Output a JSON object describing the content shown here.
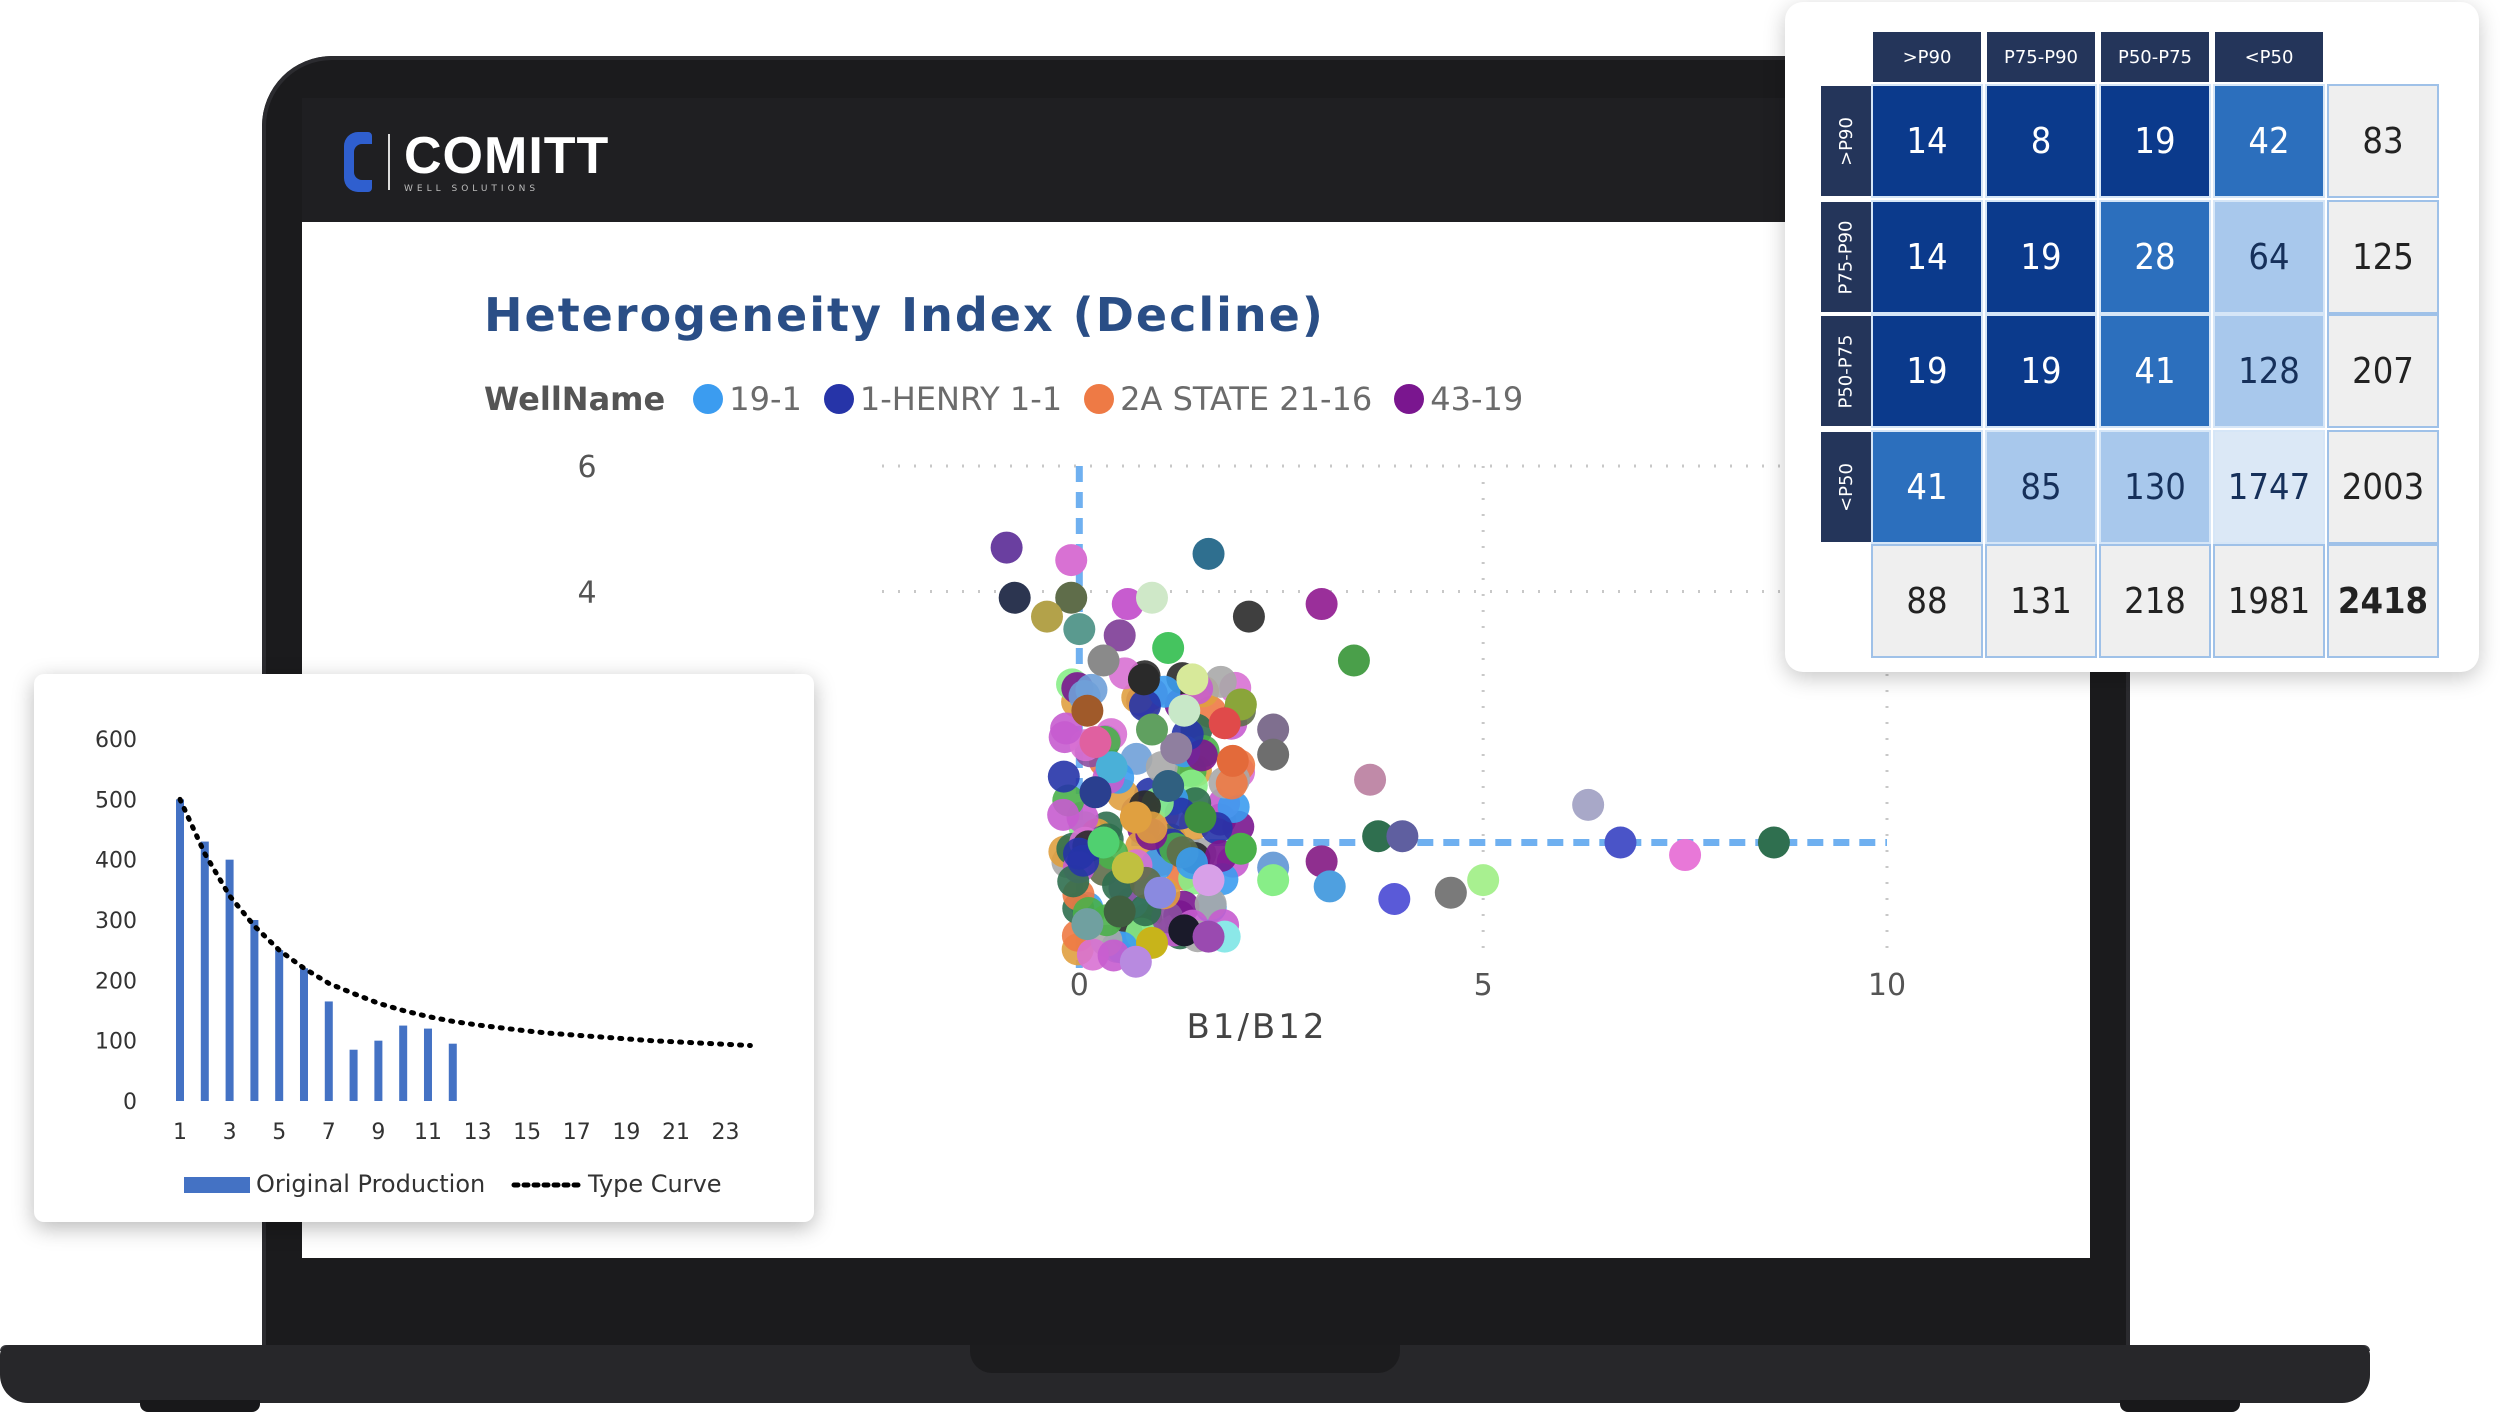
{
  "app": {
    "logo_text": "COMITT",
    "logo_sub": "WELL SOLUTIONS"
  },
  "scatter": {
    "title": "Heterogeneity Index (Decline)",
    "legend_label": "WellName",
    "legend_items": [
      {
        "name": "19-1",
        "color": "#3b9cf0"
      },
      {
        "name": "1-HENRY 1-1",
        "color": "#2634a8"
      },
      {
        "name": "2A STATE 21-16",
        "color": "#ee7a45"
      },
      {
        "name": "43-19",
        "color": "#7a168f"
      }
    ],
    "y_ticks": [
      "6",
      "4"
    ],
    "x_ticks": [
      "0",
      "5",
      "10"
    ],
    "x_label": "B1/B12"
  },
  "chart_data": [
    {
      "type": "scatter",
      "title": "Heterogeneity Index (Decline)",
      "legend_title": "WellName",
      "xlabel": "B1/B12",
      "ylabel": "",
      "xlim": [
        -3,
        10
      ],
      "ylim": [
        -2,
        6
      ],
      "series_names": [
        "19-1",
        "1-HENRY 1-1",
        "2A STATE 21-16",
        "43-19"
      ],
      "reference_lines": {
        "x": 0,
        "y": 0
      },
      "points": [
        {
          "x": -0.9,
          "y": 4.7,
          "color": "#6a3fa0"
        },
        {
          "x": -0.1,
          "y": 4.5,
          "color": "#d871d3"
        },
        {
          "x": 1.6,
          "y": 4.6,
          "color": "#2f6f8f"
        },
        {
          "x": -0.8,
          "y": 3.9,
          "color": "#2c3550"
        },
        {
          "x": -0.1,
          "y": 3.9,
          "color": "#5f6d4a"
        },
        {
          "x": 0.6,
          "y": 3.8,
          "color": "#c75ccf"
        },
        {
          "x": 0.9,
          "y": 3.9,
          "color": "#cfe8c8"
        },
        {
          "x": 3.0,
          "y": 3.8,
          "color": "#9a2f9a"
        },
        {
          "x": 2.1,
          "y": 3.6,
          "color": "#3f3f3f"
        },
        {
          "x": -0.4,
          "y": 3.6,
          "color": "#b3a24a"
        },
        {
          "x": 0.0,
          "y": 3.4,
          "color": "#5a9a8f"
        },
        {
          "x": 0.5,
          "y": 3.3,
          "color": "#8a4fa0"
        },
        {
          "x": 1.1,
          "y": 3.1,
          "color": "#45c45f"
        },
        {
          "x": 3.4,
          "y": 2.9,
          "color": "#4a9f4a"
        },
        {
          "x": 0.3,
          "y": 2.9,
          "color": "#8a8a8a"
        },
        {
          "x": 0.8,
          "y": 2.6,
          "color": "#2a2a2a"
        },
        {
          "x": 1.4,
          "y": 2.6,
          "color": "#d7e99a"
        },
        {
          "x": 2.0,
          "y": 2.2,
          "color": "#8aa53a"
        },
        {
          "x": 1.3,
          "y": 2.1,
          "color": "#c8e8c8"
        },
        {
          "x": 1.8,
          "y": 1.9,
          "color": "#e04a4a"
        },
        {
          "x": 2.4,
          "y": 1.8,
          "color": "#7f6f8f"
        },
        {
          "x": 2.4,
          "y": 1.4,
          "color": "#6e6e6e"
        },
        {
          "x": 1.2,
          "y": 1.5,
          "color": "#8f7f9f"
        },
        {
          "x": 1.9,
          "y": 1.3,
          "color": "#e36a3a"
        },
        {
          "x": 3.6,
          "y": 1.0,
          "color": "#c08aa8"
        },
        {
          "x": 6.3,
          "y": 0.6,
          "color": "#a8a8c8"
        },
        {
          "x": 3.7,
          "y": 0.1,
          "color": "#2f6f4f"
        },
        {
          "x": 4.0,
          "y": 0.1,
          "color": "#5f5fa0"
        },
        {
          "x": 6.7,
          "y": 0.0,
          "color": "#4a54c8"
        },
        {
          "x": 7.5,
          "y": -0.2,
          "color": "#e878d8"
        },
        {
          "x": 8.6,
          "y": 0.0,
          "color": "#2f6f4f"
        },
        {
          "x": 1.5,
          "y": 0.4,
          "color": "#3f8f3f"
        },
        {
          "x": 2.0,
          "y": -0.1,
          "color": "#4ab04a"
        },
        {
          "x": 2.4,
          "y": -0.4,
          "color": "#6fa0d8"
        },
        {
          "x": 3.0,
          "y": -0.3,
          "color": "#8f2f8f"
        },
        {
          "x": 3.1,
          "y": -0.7,
          "color": "#4fa0e0"
        },
        {
          "x": 2.4,
          "y": -0.6,
          "color": "#88ee88"
        },
        {
          "x": 1.6,
          "y": -0.6,
          "color": "#d8a0e8"
        },
        {
          "x": 3.9,
          "y": -0.9,
          "color": "#5a5ad8"
        },
        {
          "x": 4.6,
          "y": -0.8,
          "color": "#7a7a7a"
        },
        {
          "x": 5.0,
          "y": -0.6,
          "color": "#a8f090"
        },
        {
          "x": 1.3,
          "y": -1.4,
          "color": "#1a1a2a"
        },
        {
          "x": 0.9,
          "y": -1.6,
          "color": "#c8b41a"
        },
        {
          "x": 1.8,
          "y": -1.5,
          "color": "#8be8e8"
        },
        {
          "x": 0.7,
          "y": -1.9,
          "color": "#b88ae0"
        },
        {
          "x": 1.6,
          "y": -1.5,
          "color": "#9a4ab0"
        },
        {
          "x": 0.4,
          "y": 1.2,
          "color": "#4ab0d8"
        },
        {
          "x": 0.2,
          "y": 0.8,
          "color": "#2a3f8f"
        },
        {
          "x": 0.7,
          "y": 0.4,
          "color": "#e0a040"
        },
        {
          "x": 0.3,
          "y": 0.0,
          "color": "#50d070"
        },
        {
          "x": 1.0,
          "y": -0.8,
          "color": "#8a8ae0"
        },
        {
          "x": 0.5,
          "y": -1.1,
          "color": "#406040"
        },
        {
          "x": 0.1,
          "y": 2.1,
          "color": "#a05a2a"
        },
        {
          "x": 0.2,
          "y": 1.6,
          "color": "#e060a0"
        },
        {
          "x": 0.9,
          "y": 1.8,
          "color": "#60a060"
        },
        {
          "x": 1.1,
          "y": 0.9,
          "color": "#306080"
        },
        {
          "x": 0.6,
          "y": -0.4,
          "color": "#c0c040"
        },
        {
          "x": 0.1,
          "y": -1.3,
          "color": "#70a0a0"
        }
      ]
    },
    {
      "type": "bar",
      "title": "",
      "xlabel": "",
      "ylabel": "",
      "ylim": [
        0,
        600
      ],
      "y_ticks": [
        0,
        100,
        200,
        300,
        400,
        500,
        600
      ],
      "x_ticks": [
        1,
        3,
        5,
        7,
        9,
        11,
        13,
        15,
        17,
        19,
        21,
        23
      ],
      "categories": [
        1,
        2,
        3,
        4,
        5,
        6,
        7,
        8,
        9,
        10,
        11,
        12,
        13,
        14,
        15,
        16,
        17,
        18,
        19,
        20,
        21,
        22,
        23,
        24
      ],
      "series": [
        {
          "name": "Original Production",
          "type": "bar",
          "color": "#4472c4",
          "values": [
            500,
            430,
            400,
            300,
            250,
            220,
            165,
            85,
            100,
            125,
            120,
            95,
            null,
            null,
            null,
            null,
            null,
            null,
            null,
            null,
            null,
            null,
            null,
            null
          ]
        },
        {
          "name": "Type Curve",
          "type": "line",
          "style": "dotted",
          "color": "#000000",
          "values": [
            500,
            410,
            340,
            290,
            250,
            220,
            195,
            178,
            162,
            150,
            140,
            132,
            126,
            121,
            116,
            112,
            109,
            106,
            103,
            100,
            98,
            96,
            94,
            92
          ]
        }
      ]
    },
    {
      "type": "heatmap",
      "columns": [
        ">P90",
        "P75-P90",
        "P50-P75",
        "<P50"
      ],
      "rows": [
        ">P90",
        "P75-P90",
        "P50-P75",
        "<P50"
      ],
      "values": [
        [
          14,
          8,
          19,
          42
        ],
        [
          14,
          19,
          28,
          64
        ],
        [
          19,
          19,
          41,
          128
        ],
        [
          41,
          85,
          130,
          1747
        ]
      ],
      "row_totals": [
        83,
        125,
        207,
        2003
      ],
      "column_totals": [
        88,
        131,
        218,
        1981
      ],
      "grand_total": 2418
    }
  ],
  "matrix": {
    "col_headers": [
      ">P90",
      "P75-P90",
      "P50-P75",
      "<P50"
    ],
    "row_headers": [
      ">P90",
      "P75-P90",
      "P50-P75",
      "<P50"
    ],
    "colors": {
      "dark": "#0b3a8c",
      "mid": "#2c6fbd",
      "light": "#a8c8ec",
      "pale": "#dbe8f6",
      "header": "#24355a"
    }
  },
  "bar_legend": {
    "bar_label": "Original Production",
    "line_label": "Type Curve"
  }
}
